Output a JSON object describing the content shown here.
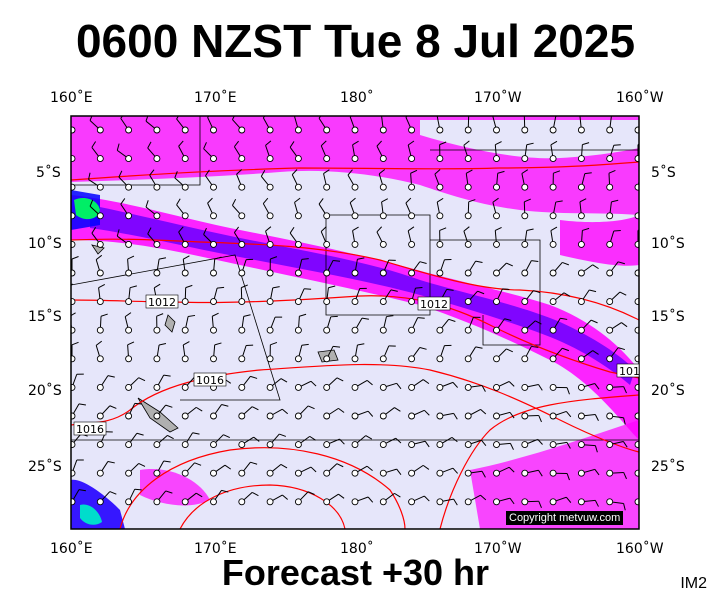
{
  "title": "0600 NZST Tue 8 Jul 2025",
  "subtitle": "Forecast +30 hr",
  "code": "IM2",
  "copyright": "Copyright metvuw.com",
  "lon_labels": [
    "160˚E",
    "170˚E",
    "180˚",
    "170˚W",
    "160˚W"
  ],
  "lat_labels": [
    "5˚S",
    "10˚S",
    "15˚S",
    "20˚S",
    "25˚S"
  ],
  "isobar_labels": [
    "1012",
    "1012",
    "1016",
    "1016",
    "101"
  ],
  "colors": {
    "background": "#e6e6fa",
    "precip_light": "#ff00ff",
    "precip_mid": "#9900ff",
    "precip_heavy": "#0000ff",
    "precip_extreme": "#00ffaa",
    "isobar": "#ff0000",
    "border": "#000000"
  }
}
